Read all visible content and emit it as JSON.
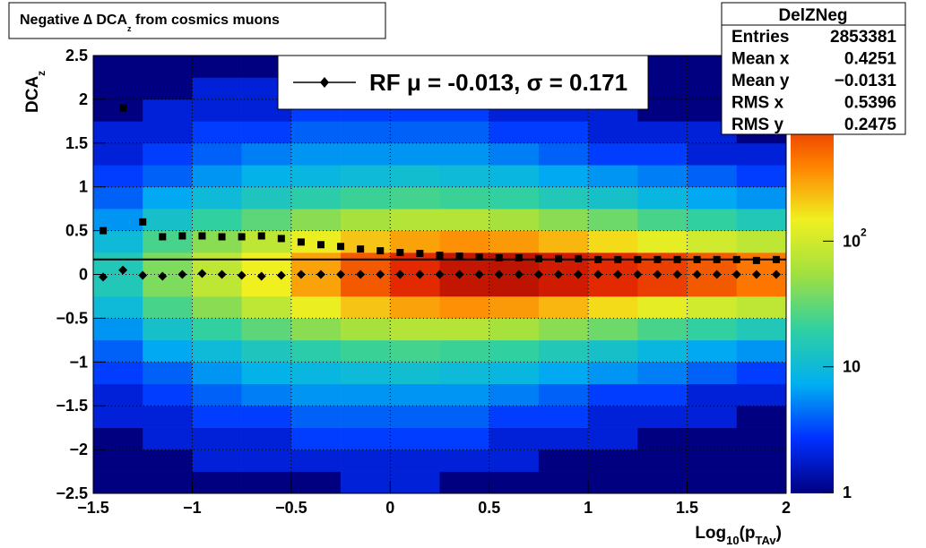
{
  "chart_data": {
    "type": "heatmap",
    "title": [
      "Negative ∆ DCA",
      "z",
      " from cosmics muons"
    ],
    "xlabel": [
      "Log",
      "10",
      "(p",
      "TAv",
      ")"
    ],
    "ylabel": [
      "DCA",
      "z"
    ],
    "xlim": [
      -1.5,
      2
    ],
    "ylim": [
      -2.5,
      2.5
    ],
    "zlim": [
      1,
      3000
    ],
    "zlog": true,
    "grid": true,
    "xticks": [
      {
        "value": -1.5,
        "label": "−1.5"
      },
      {
        "value": -1,
        "label": "−1"
      },
      {
        "value": -0.5,
        "label": "−0.5"
      },
      0,
      0.5,
      1,
      1.5,
      2
    ],
    "yticks": [
      {
        "value": -2.5,
        "label": "−2.5"
      },
      {
        "value": -2,
        "label": "−2"
      },
      {
        "value": -1.5,
        "label": "−1.5"
      },
      {
        "value": -1,
        "label": "−1"
      },
      {
        "value": -0.5,
        "label": "−0.5"
      },
      0,
      0.5,
      1,
      1.5,
      2,
      2.5
    ],
    "zticks": [
      1,
      10,
      {
        "value": 100,
        "label": "10",
        "exponent": "2"
      }
    ],
    "palette": [
      "#000080",
      "#0030ff",
      "#00b0f0",
      "#30d0a0",
      "#a0e040",
      "#f0f020",
      "#ff8000",
      "#e02000",
      "#800000"
    ],
    "x_bins": [
      -1.5,
      -1.25,
      -1,
      -0.75,
      -0.5,
      -0.25,
      0,
      0.25,
      0.5,
      0.75,
      1,
      1.25,
      1.5,
      1.75,
      2
    ],
    "y_bins": [
      -2.5,
      -2.25,
      -2,
      -1.75,
      -1.5,
      -1.25,
      -1,
      -0.75,
      -0.5,
      -0.25,
      0,
      0.25,
      0.5,
      0.75,
      1,
      1.25,
      1.5,
      1.75,
      2,
      2.25,
      2.5
    ],
    "z": [
      [
        1,
        1,
        1,
        1,
        1,
        2,
        2,
        1,
        1,
        1,
        1,
        1,
        1,
        1
      ],
      [
        1,
        1,
        2,
        2,
        2,
        2,
        2,
        2,
        2,
        1,
        1,
        1,
        1,
        1
      ],
      [
        1,
        2,
        2,
        2,
        3,
        3,
        3,
        3,
        2,
        2,
        2,
        1,
        1,
        1
      ],
      [
        2,
        2,
        3,
        3,
        4,
        4,
        4,
        4,
        3,
        3,
        2,
        2,
        2,
        1
      ],
      [
        2,
        3,
        4,
        5,
        6,
        6,
        6,
        6,
        5,
        4,
        3,
        3,
        2,
        2
      ],
      [
        3,
        4,
        6,
        8,
        9,
        10,
        11,
        10,
        9,
        7,
        6,
        5,
        4,
        3
      ],
      [
        4,
        7,
        10,
        14,
        18,
        22,
        24,
        22,
        20,
        15,
        12,
        9,
        7,
        6
      ],
      [
        6,
        12,
        20,
        30,
        45,
        60,
        70,
        70,
        60,
        45,
        35,
        25,
        20,
        15
      ],
      [
        10,
        25,
        45,
        80,
        140,
        220,
        300,
        350,
        320,
        250,
        180,
        130,
        100,
        80
      ],
      [
        15,
        40,
        80,
        150,
        300,
        600,
        1000,
        1500,
        1600,
        1300,
        1000,
        800,
        600,
        450
      ],
      [
        15,
        40,
        80,
        150,
        300,
        600,
        1000,
        1500,
        1600,
        1300,
        1000,
        800,
        600,
        450
      ],
      [
        10,
        25,
        45,
        80,
        140,
        220,
        300,
        350,
        320,
        250,
        180,
        130,
        100,
        80
      ],
      [
        6,
        12,
        20,
        30,
        45,
        60,
        70,
        70,
        60,
        45,
        35,
        25,
        20,
        15
      ],
      [
        4,
        7,
        10,
        14,
        18,
        22,
        24,
        22,
        20,
        15,
        12,
        9,
        7,
        6
      ],
      [
        3,
        4,
        6,
        8,
        9,
        10,
        11,
        10,
        9,
        7,
        6,
        5,
        4,
        3
      ],
      [
        2,
        3,
        4,
        5,
        6,
        6,
        6,
        6,
        5,
        4,
        3,
        3,
        2,
        2
      ],
      [
        2,
        2,
        3,
        3,
        4,
        4,
        4,
        4,
        3,
        3,
        2,
        2,
        2,
        1
      ],
      [
        1,
        2,
        2,
        2,
        3,
        3,
        3,
        3,
        2,
        2,
        2,
        1,
        1,
        1
      ],
      [
        1,
        1,
        2,
        2,
        2,
        2,
        2,
        2,
        2,
        1,
        1,
        1,
        1,
        1
      ],
      [
        1,
        1,
        1,
        1,
        1,
        2,
        2,
        1,
        1,
        1,
        1,
        1,
        1,
        1
      ]
    ],
    "x": [
      -1.45,
      -1.35,
      -1.25,
      -1.15,
      -1.05,
      -0.95,
      -0.85,
      -0.75,
      -0.65,
      -0.55,
      -0.45,
      -0.35,
      -0.25,
      -0.15,
      -0.05,
      0.05,
      0.15,
      0.25,
      0.35,
      0.45,
      0.55,
      0.65,
      0.75,
      0.85,
      0.95,
      1.05,
      1.15,
      1.25,
      1.35,
      1.45,
      1.55,
      1.65,
      1.75,
      1.85,
      1.95
    ],
    "series": [
      {
        "name": "RF μ = -0.013, σ =   0.171",
        "marker": "diamond",
        "color": "#000000",
        "values": [
          -0.03,
          0.05,
          -0.01,
          -0.02,
          0,
          0.01,
          0,
          -0.01,
          -0.02,
          -0.01,
          0,
          0,
          0,
          0,
          0,
          0,
          0,
          0,
          0,
          0,
          0,
          0,
          0,
          0,
          0,
          0,
          0,
          0,
          0,
          0,
          0,
          0,
          0,
          0,
          0
        ]
      },
      {
        "marker": "square",
        "color": "#000000",
        "values": [
          0.5,
          1.9,
          0.6,
          0.43,
          0.44,
          0.44,
          0.43,
          0.43,
          0.44,
          0.41,
          0.37,
          0.34,
          0.32,
          0.29,
          0.27,
          0.25,
          0.24,
          0.22,
          0.21,
          0.2,
          0.19,
          0.19,
          0.18,
          0.18,
          0.18,
          0.17,
          0.17,
          0.17,
          0.17,
          0.17,
          0.17,
          0.17,
          0.17,
          0.16,
          0.17
        ]
      }
    ],
    "ref_line": 0.171,
    "stats": {
      "title": "DelZNeg",
      "rows": [
        [
          "Entries",
          "2853381"
        ],
        [
          "Mean x",
          "0.4251"
        ],
        [
          "Mean y",
          "−0.0131"
        ],
        [
          "RMS x",
          "0.5396"
        ],
        [
          "RMS y",
          "0.2475"
        ]
      ]
    }
  }
}
